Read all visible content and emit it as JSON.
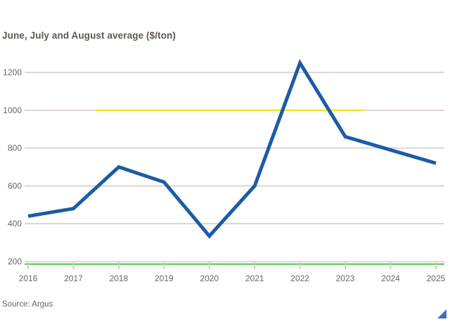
{
  "page": {
    "background": "#ffffff"
  },
  "header": {
    "subtitle": "June, July and August average ($/ton)"
  },
  "footer": {
    "source": "Source: Argus"
  },
  "icons": {
    "corner_triangle": "corner-resize-triangle"
  },
  "style": {
    "line_color": "#1d5ba4",
    "grid_color": "#d6ccc4",
    "tick_color": "#d9c8bf",
    "axis_text_color": "#6b6560",
    "yellow_highlight": "#f2e203",
    "green_baseline": "#2fbf2f",
    "corner_icon_color": "#3a70b9"
  },
  "chart_data": {
    "type": "line",
    "title": "June, July and August average ($/ton)",
    "source": "Source: Argus",
    "x": [
      2016,
      2017,
      2018,
      2019,
      2020,
      2021,
      2022,
      2023,
      2024,
      2025
    ],
    "series": [
      {
        "name": "June-August average price ($/ton)",
        "color": "#1d5ba4",
        "values": [
          440,
          480,
          700,
          620,
          335,
          600,
          1250,
          860,
          790,
          720
        ]
      }
    ],
    "yticks": [
      200,
      400,
      600,
      800,
      1000,
      1200
    ],
    "ylim": [
      200,
      1260
    ],
    "xlabel": "",
    "ylabel": "$/ton",
    "grid": "horizontal",
    "legend": "none",
    "annotations": [
      {
        "name": "yellow-highlight-line",
        "type": "horizontal-segment",
        "y_value": 1000,
        "x_start_year": 2017.5,
        "x_end_year": 2023.4,
        "color": "#f2e203"
      },
      {
        "name": "green-baseline",
        "type": "baseline-highlight",
        "y_value": 200,
        "color": "#2fbf2f"
      }
    ]
  }
}
